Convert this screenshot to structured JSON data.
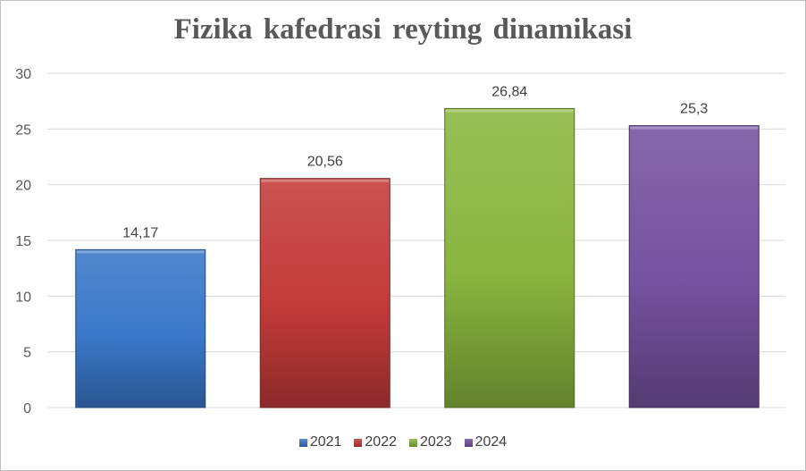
{
  "chart_data": {
    "type": "bar",
    "title": "Fizika kafedrasi reyting dinamikasi",
    "categories": [
      "2021",
      "2022",
      "2023",
      "2024"
    ],
    "values": [
      14.17,
      20.56,
      26.84,
      25.3
    ],
    "value_labels": [
      "14,17",
      "20,56",
      "26,84",
      "25,3"
    ],
    "colors": [
      "#3a78c9",
      "#c33b3a",
      "#8ab53f",
      "#7652a0"
    ],
    "ylim": [
      0,
      30
    ],
    "yticks": [
      0,
      5,
      10,
      15,
      20,
      25,
      30
    ],
    "grid": true,
    "legend": "bottom",
    "legend_entries": [
      "2021",
      "2022",
      "2023",
      "2024"
    ]
  }
}
